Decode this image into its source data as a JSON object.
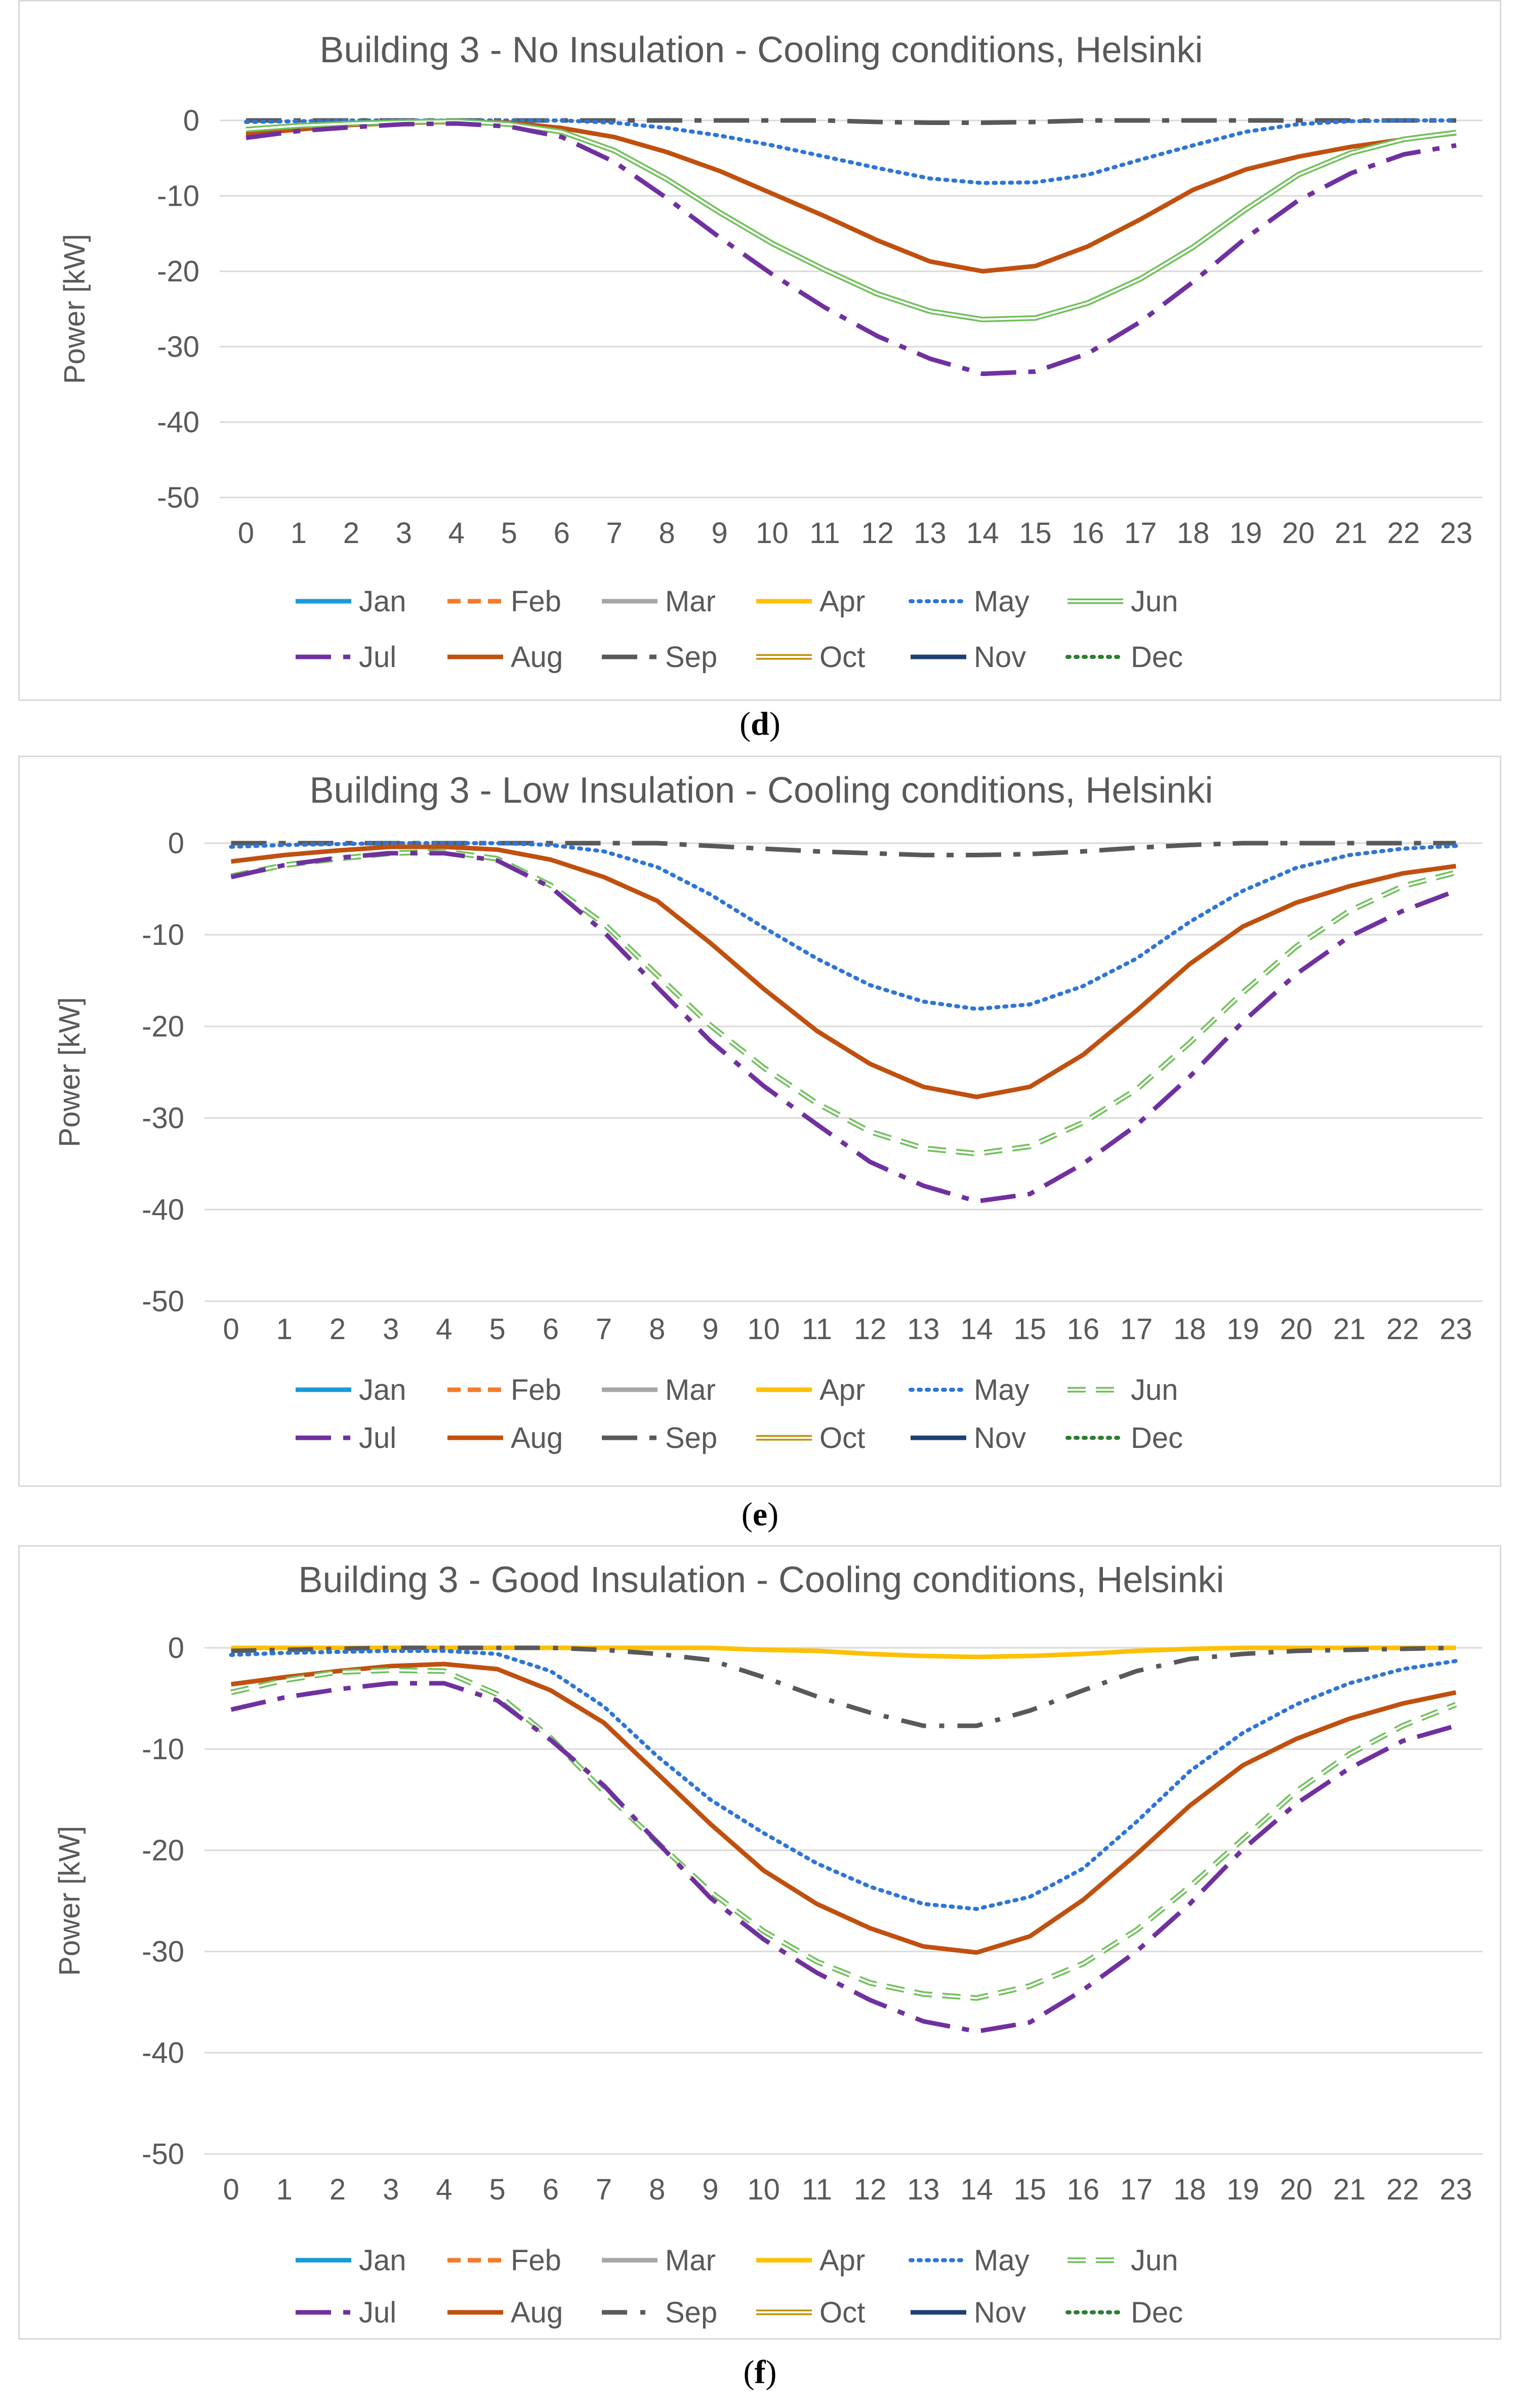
{
  "colors": {
    "Jan": "#1a9ad6",
    "Feb": "#f47b2a",
    "Mar": "#a6a6a6",
    "Apr": "#ffc000",
    "May": "#2e75d6",
    "Jun": "#70c05a",
    "Jul": "#7030a0",
    "Aug": "#c0500f",
    "Sep": "#595959",
    "Oct": "#bf9000",
    "Nov": "#1f3f73",
    "Dec": "#2e7d32",
    "grid": "#d9d9d9",
    "text": "#595959"
  },
  "chart_data": [
    {
      "type": "line",
      "title": "Building 3 - No Insulation - Cooling conditions, Helsinki",
      "caption_open": "(",
      "caption_letter": "d",
      "caption_close": ")",
      "ylabel": "Power [kW]",
      "ylim": [
        -50,
        0
      ],
      "yticks": [
        "0",
        "-10",
        "-20",
        "-30",
        "-40",
        "-50"
      ],
      "categories": [
        "0",
        "1",
        "2",
        "3",
        "4",
        "5",
        "6",
        "7",
        "8",
        "9",
        "10",
        "11",
        "12",
        "13",
        "14",
        "15",
        "16",
        "17",
        "18",
        "19",
        "20",
        "21",
        "22",
        "23"
      ],
      "legend": [
        {
          "name": "Jan",
          "style": "solid"
        },
        {
          "name": "Feb",
          "style": "dashed"
        },
        {
          "name": "Mar",
          "style": "solid"
        },
        {
          "name": "Apr",
          "style": "solid"
        },
        {
          "name": "May",
          "style": "dotted"
        },
        {
          "name": "Jun",
          "style": "double"
        },
        {
          "name": "Jul",
          "style": "longdash"
        },
        {
          "name": "Aug",
          "style": "solid"
        },
        {
          "name": "Sep",
          "style": "longdash"
        },
        {
          "name": "Oct",
          "style": "double"
        },
        {
          "name": "Nov",
          "style": "solid"
        },
        {
          "name": "Dec",
          "style": "dotted"
        }
      ],
      "series": [
        {
          "name": "Sep",
          "style": "longdash",
          "values": [
            0,
            0,
            0,
            0,
            0,
            0,
            0,
            0,
            0,
            0,
            0,
            0,
            -0.2,
            -0.3,
            -0.3,
            -0.2,
            0,
            0,
            0,
            0,
            0,
            0,
            0,
            0
          ]
        },
        {
          "name": "May",
          "style": "dotted",
          "values": [
            -0.2,
            -0.1,
            0,
            0,
            0,
            0,
            0,
            -0.3,
            -1,
            -2,
            -3.3,
            -4.8,
            -6.3,
            -7.7,
            -8.3,
            -8.2,
            -7.2,
            -5.2,
            -3.3,
            -1.5,
            -0.5,
            -0.1,
            0,
            0
          ]
        },
        {
          "name": "Aug",
          "style": "solid",
          "values": [
            -1.8,
            -1.2,
            -0.6,
            -0.3,
            -0.2,
            -0.3,
            -1,
            -2.2,
            -4.2,
            -6.7,
            -9.7,
            -12.7,
            -15.9,
            -18.7,
            -20,
            -19.3,
            -16.7,
            -13.1,
            -9.2,
            -6.5,
            -4.8,
            -3.5,
            -2.5,
            -1.7
          ]
        },
        {
          "name": "Jun",
          "style": "double",
          "values": [
            -1.2,
            -0.7,
            -0.4,
            -0.2,
            -0.1,
            -0.5,
            -1.5,
            -4,
            -7.8,
            -12.2,
            -16.3,
            -19.8,
            -23,
            -25.3,
            -26.4,
            -26.2,
            -24.2,
            -21,
            -16.8,
            -11.8,
            -7.2,
            -4.3,
            -2.5,
            -1.6
          ]
        },
        {
          "name": "Jul",
          "style": "longdash",
          "values": [
            -2.3,
            -1.4,
            -0.9,
            -0.5,
            -0.4,
            -0.8,
            -2.2,
            -5.5,
            -10.3,
            -15.5,
            -20.4,
            -24.8,
            -28.6,
            -31.6,
            -33.6,
            -33.3,
            -30.9,
            -26.7,
            -21.4,
            -15.6,
            -10.6,
            -7,
            -4.5,
            -3.3
          ]
        }
      ]
    },
    {
      "type": "line",
      "title": "Building 3 - Low Insulation - Cooling conditions, Helsinki",
      "caption_open": "(",
      "caption_letter": "e",
      "caption_close": ")",
      "ylabel": "Power [kW]",
      "ylim": [
        -50,
        0
      ],
      "yticks": [
        "0",
        "-10",
        "-20",
        "-30",
        "-40",
        "-50"
      ],
      "categories": [
        "0",
        "1",
        "2",
        "3",
        "4",
        "5",
        "6",
        "7",
        "8",
        "9",
        "10",
        "11",
        "12",
        "13",
        "14",
        "15",
        "16",
        "17",
        "18",
        "19",
        "20",
        "21",
        "22",
        "23"
      ],
      "legend": [
        {
          "name": "Jan",
          "style": "solid"
        },
        {
          "name": "Feb",
          "style": "dashed"
        },
        {
          "name": "Mar",
          "style": "solid"
        },
        {
          "name": "Apr",
          "style": "solid"
        },
        {
          "name": "May",
          "style": "dotted"
        },
        {
          "name": "Jun",
          "style": "hollowdash"
        },
        {
          "name": "Jul",
          "style": "longdash"
        },
        {
          "name": "Aug",
          "style": "solid"
        },
        {
          "name": "Sep",
          "style": "longdash"
        },
        {
          "name": "Oct",
          "style": "double"
        },
        {
          "name": "Nov",
          "style": "solid"
        },
        {
          "name": "Dec",
          "style": "dotted"
        }
      ],
      "series": [
        {
          "name": "Sep",
          "style": "longdash",
          "values": [
            0,
            0,
            0,
            0,
            0,
            0,
            0,
            0,
            0,
            -0.3,
            -0.6,
            -0.9,
            -1.1,
            -1.3,
            -1.3,
            -1.2,
            -0.9,
            -0.5,
            -0.2,
            0,
            0,
            0,
            0,
            0
          ]
        },
        {
          "name": "May",
          "style": "dotted",
          "values": [
            -0.4,
            -0.2,
            -0.1,
            0,
            0,
            0,
            -0.2,
            -0.9,
            -2.6,
            -5.6,
            -9.2,
            -12.6,
            -15.5,
            -17.3,
            -18.1,
            -17.6,
            -15.6,
            -12.6,
            -8.6,
            -5.2,
            -2.7,
            -1.3,
            -0.6,
            -0.3
          ]
        },
        {
          "name": "Aug",
          "style": "solid",
          "values": [
            -2,
            -1.3,
            -0.8,
            -0.4,
            -0.4,
            -0.7,
            -1.8,
            -3.7,
            -6.3,
            -10.9,
            -15.9,
            -20.5,
            -24.1,
            -26.6,
            -27.7,
            -26.6,
            -23.1,
            -18.3,
            -13.2,
            -9.1,
            -6.5,
            -4.7,
            -3.3,
            -2.5
          ]
        },
        {
          "name": "Jun",
          "style": "hollowdash",
          "values": [
            -3.6,
            -2.4,
            -1.7,
            -1.1,
            -0.9,
            -1.7,
            -4.6,
            -8.8,
            -14.4,
            -19.9,
            -24.5,
            -28.4,
            -31.5,
            -33.3,
            -33.9,
            -33.1,
            -30.5,
            -26.9,
            -21.8,
            -16.3,
            -11.3,
            -7.4,
            -4.7,
            -3.2
          ]
        },
        {
          "name": "Jul",
          "style": "longdash",
          "values": [
            -3.7,
            -2.4,
            -1.6,
            -1.1,
            -1.1,
            -1.9,
            -4.8,
            -9.7,
            -15.7,
            -21.6,
            -26.5,
            -30.7,
            -34.8,
            -37.4,
            -39.1,
            -38.3,
            -35,
            -30.8,
            -25.5,
            -19.5,
            -14.3,
            -10.2,
            -7.4,
            -5.2
          ]
        }
      ]
    },
    {
      "type": "line",
      "title": "Building 3 - Good Insulation - Cooling conditions, Helsinki",
      "caption_open": "(",
      "caption_letter": "f",
      "caption_close": ")",
      "ylabel": "Power [kW]",
      "ylim": [
        -50,
        0
      ],
      "yticks": [
        "0",
        "-10",
        "-20",
        "-30",
        "-40",
        "-50"
      ],
      "categories": [
        "0",
        "1",
        "2",
        "3",
        "4",
        "5",
        "6",
        "7",
        "8",
        "9",
        "10",
        "11",
        "12",
        "13",
        "14",
        "15",
        "16",
        "17",
        "18",
        "19",
        "20",
        "21",
        "22",
        "23"
      ],
      "legend": [
        {
          "name": "Jan",
          "style": "solid"
        },
        {
          "name": "Feb",
          "style": "dashed"
        },
        {
          "name": "Mar",
          "style": "solid"
        },
        {
          "name": "Apr",
          "style": "solid"
        },
        {
          "name": "May",
          "style": "dotted"
        },
        {
          "name": "Jun",
          "style": "hollowdash"
        },
        {
          "name": "Jul",
          "style": "longdash"
        },
        {
          "name": "Aug",
          "style": "solid"
        },
        {
          "name": "Sep",
          "style": "dashdot"
        },
        {
          "name": "Oct",
          "style": "double"
        },
        {
          "name": "Nov",
          "style": "solid"
        },
        {
          "name": "Dec",
          "style": "dotted"
        }
      ],
      "series": [
        {
          "name": "Apr",
          "style": "solid",
          "values": [
            0,
            0,
            0,
            0,
            0,
            0,
            0,
            0,
            0,
            0,
            -0.2,
            -0.3,
            -0.6,
            -0.8,
            -0.9,
            -0.8,
            -0.6,
            -0.3,
            -0.1,
            0,
            0,
            0,
            0,
            0
          ]
        },
        {
          "name": "Sep",
          "style": "dashdot",
          "values": [
            -0.3,
            -0.2,
            -0.1,
            0,
            0,
            0,
            0,
            -0.2,
            -0.6,
            -1.2,
            -2.9,
            -4.8,
            -6.4,
            -7.7,
            -7.7,
            -6.2,
            -4.2,
            -2.3,
            -1.1,
            -0.6,
            -0.3,
            -0.2,
            -0.1,
            0
          ]
        },
        {
          "name": "May",
          "style": "dotted",
          "values": [
            -0.7,
            -0.5,
            -0.4,
            -0.3,
            -0.3,
            -0.6,
            -2.3,
            -5.8,
            -10.7,
            -15,
            -18.3,
            -21.3,
            -23.6,
            -25.3,
            -25.8,
            -24.6,
            -21.8,
            -17.2,
            -12.2,
            -8.4,
            -5.6,
            -3.5,
            -2.1,
            -1.3
          ]
        },
        {
          "name": "Aug",
          "style": "solid",
          "values": [
            -3.6,
            -2.9,
            -2.3,
            -1.8,
            -1.6,
            -2.1,
            -4.2,
            -7.4,
            -12.4,
            -17.4,
            -22,
            -25.3,
            -27.7,
            -29.5,
            -30.1,
            -28.5,
            -24.9,
            -20.4,
            -15.6,
            -11.6,
            -9,
            -7,
            -5.5,
            -4.4
          ]
        },
        {
          "name": "Jun",
          "style": "hollowdash",
          "values": [
            -4.4,
            -3.2,
            -2.4,
            -2.2,
            -2.3,
            -4.6,
            -8.9,
            -14.2,
            -19.2,
            -24.1,
            -28,
            -31,
            -33.1,
            -34.2,
            -34.6,
            -33.4,
            -31.2,
            -27.9,
            -23.6,
            -18.9,
            -14.2,
            -10.5,
            -7.7,
            -5.6
          ]
        },
        {
          "name": "Jul",
          "style": "longdash",
          "values": [
            -6.1,
            -4.9,
            -4.1,
            -3.5,
            -3.5,
            -5.2,
            -9.1,
            -13.6,
            -19.2,
            -24.7,
            -28.8,
            -32.1,
            -34.8,
            -36.9,
            -37.9,
            -37,
            -33.8,
            -30,
            -25.3,
            -19.9,
            -15.4,
            -11.9,
            -9.2,
            -7.7
          ]
        }
      ]
    }
  ]
}
